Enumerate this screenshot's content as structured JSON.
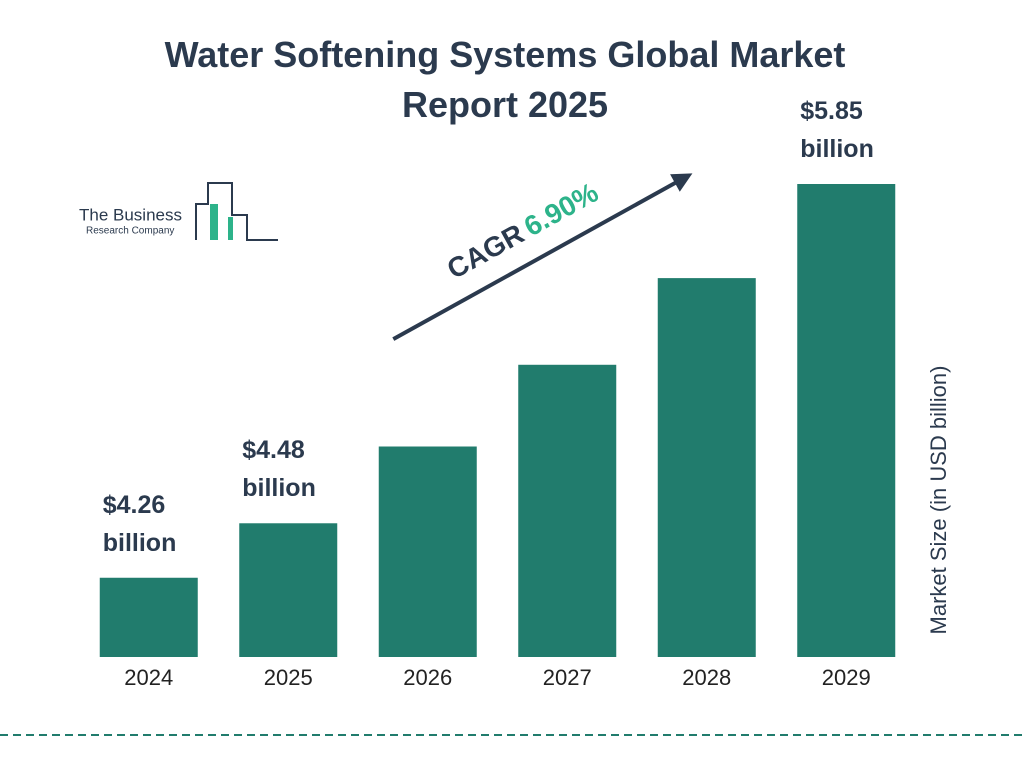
{
  "chart_data": {
    "type": "bar",
    "title": "Water Softening Systems Global Market Report 2025",
    "logo": {
      "line1": "The Business",
      "line2": "Research Company"
    },
    "annotation": {
      "label": "CAGR",
      "value": "6.90%"
    },
    "y_axis_label": "Market Size (in USD billion)",
    "categories": [
      "2024",
      "2025",
      "2026",
      "2027",
      "2028",
      "2029"
    ],
    "values": [
      4.26,
      4.48,
      4.79,
      5.12,
      5.47,
      5.85
    ],
    "value_labels": [
      "$4.26 billion",
      "$4.48 billion",
      null,
      null,
      null,
      "$5.85 billion"
    ],
    "color": "#217c6d",
    "ylim": [
      3.94,
      5.85
    ]
  }
}
